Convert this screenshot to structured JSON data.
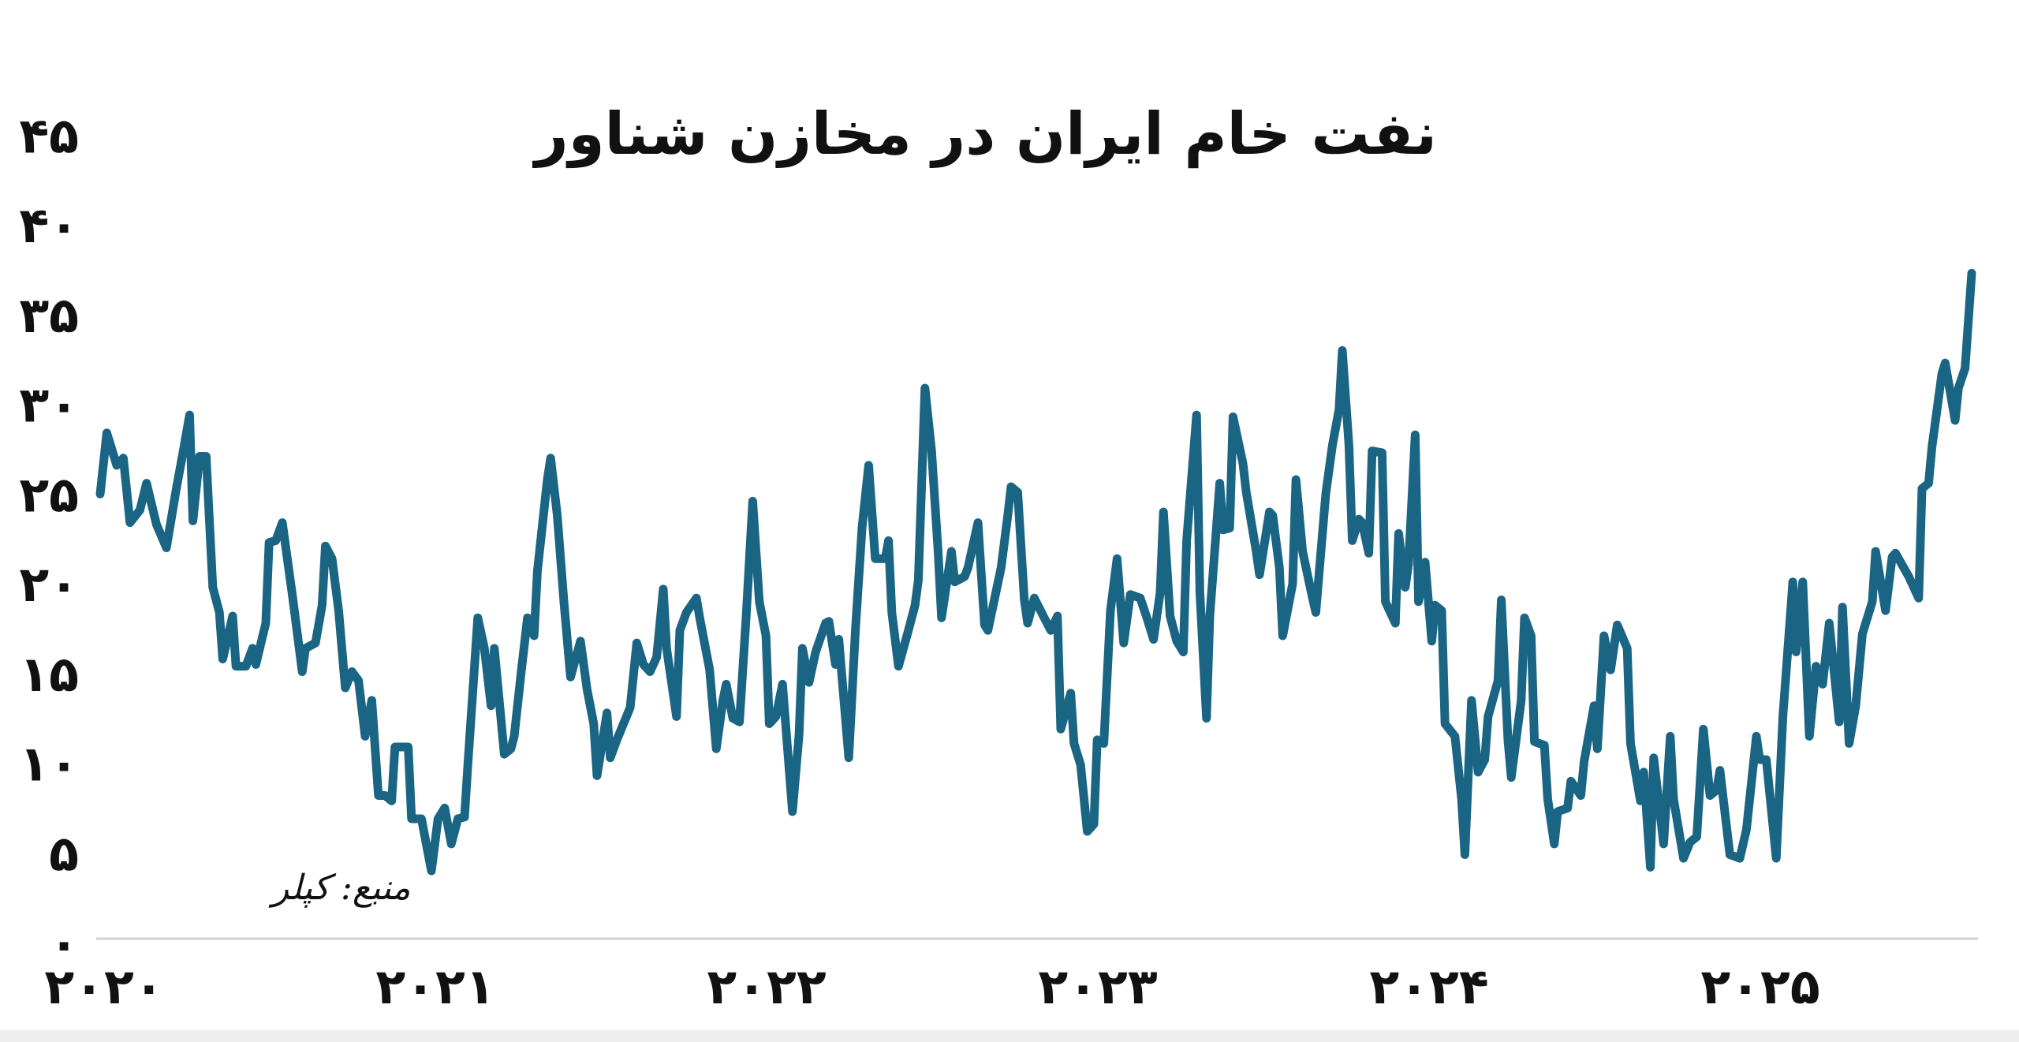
{
  "chart_data": {
    "type": "line",
    "title": "نفت خام ایران در مخازن شناور",
    "source": "منبع: کپلر",
    "xlabel": "",
    "ylabel": "",
    "ylim": [
      0,
      45
    ],
    "xlim": [
      2020,
      2025.65
    ],
    "grid": false,
    "line_color": "#1b6584",
    "y_ticks": [
      0,
      5,
      10,
      15,
      20,
      25,
      30,
      35,
      40,
      45
    ],
    "y_tick_labels": [
      "۰",
      "۵",
      "۱۰",
      "۱۵",
      "۲۰",
      "۲۵",
      "۳۰",
      "۳۵",
      "۴۰",
      "۴۵"
    ],
    "x_ticks": [
      2020,
      2021,
      2022,
      2023,
      2024,
      2025
    ],
    "x_tick_labels": [
      "۲۰۲۰",
      "۲۰۲۱",
      "۲۰۲۲",
      "۲۰۲۳",
      "۲۰۲۴",
      "۲۰۲۵"
    ],
    "series": [
      {
        "x": [
          2020.0,
          2020.02,
          2020.05,
          2020.07,
          2020.09,
          2020.12,
          2020.14,
          2020.17,
          2020.2,
          2020.23,
          2020.25,
          2020.27,
          2020.28,
          2020.3,
          2020.32,
          2020.34,
          2020.36,
          2020.37,
          2020.4,
          2020.41,
          2020.44,
          2020.46,
          2020.47,
          2020.5,
          2020.51,
          2020.53,
          2020.55,
          2020.58,
          2020.61,
          2020.62,
          2020.65,
          2020.67,
          2020.68,
          2020.7,
          2020.72,
          2020.74,
          2020.76,
          2020.78,
          2020.8,
          2020.82,
          2020.84,
          2020.86,
          2020.88,
          2020.89,
          2020.93,
          2020.94,
          2020.97,
          2021.0,
          2021.02,
          2021.04,
          2021.06,
          2021.08,
          2021.1,
          2021.11,
          2021.14,
          2021.16,
          2021.18,
          2021.19,
          2021.22,
          2021.24,
          2021.25,
          2021.27,
          2021.29,
          2021.31,
          2021.32,
          2021.35,
          2021.36,
          2021.38,
          2021.4,
          2021.42,
          2021.45,
          2021.47,
          2021.49,
          2021.5,
          2021.53,
          2021.54,
          2021.56,
          2021.6,
          2021.62,
          2021.64,
          2021.66,
          2021.68,
          2021.7,
          2021.71,
          2021.74,
          2021.75,
          2021.77,
          2021.8,
          2021.81,
          2021.84,
          2021.86,
          2021.88,
          2021.89,
          2021.91,
          2021.93,
          2021.95,
          2021.97,
          2021.99,
          2022.01,
          2022.02,
          2022.04,
          2022.06,
          2022.09,
          2022.11,
          2022.12,
          2022.14,
          2022.16,
          2022.19,
          2022.2,
          2022.22,
          2022.23,
          2022.26,
          2022.28,
          2022.3,
          2022.32,
          2022.34,
          2022.37,
          2022.38,
          2022.39,
          2022.41,
          2022.44,
          2022.46,
          2022.47,
          2022.49,
          2022.51,
          2022.53,
          2022.54,
          2022.57,
          2022.58,
          2022.61,
          2022.62,
          2022.65,
          2022.67,
          2022.68,
          2022.72,
          2022.74,
          2022.75,
          2022.77,
          2022.79,
          2022.8,
          2022.82,
          2022.85,
          2022.87,
          2022.89,
          2022.9,
          2022.93,
          2022.94,
          2022.96,
          2022.98,
          2023.0,
          2023.01,
          2023.03,
          2023.05,
          2023.07,
          2023.09,
          2023.11,
          2023.14,
          2023.16,
          2023.18,
          2023.2,
          2023.21,
          2023.23,
          2023.25,
          2023.27,
          2023.28,
          2023.31,
          2023.32,
          2023.34,
          2023.35,
          2023.38,
          2023.39,
          2023.41,
          2023.42,
          2023.45,
          2023.46,
          2023.49,
          2023.5,
          2023.53,
          2023.54,
          2023.56,
          2023.57,
          2023.6,
          2023.61,
          2023.63,
          2023.66,
          2023.67,
          2023.7,
          2023.72,
          2023.74,
          2023.75,
          2023.77,
          2023.78,
          2023.8,
          2023.81,
          2023.83,
          2023.84,
          2023.87,
          2023.88,
          2023.91,
          2023.92,
          2023.94,
          2023.95,
          2023.97,
          2023.98,
          2024.0,
          2024.02,
          2024.03,
          2024.05,
          2024.06,
          2024.09,
          2024.11,
          2024.12,
          2024.14,
          2024.16,
          2024.18,
          2024.19,
          2024.22,
          2024.23,
          2024.25,
          2024.26,
          2024.29,
          2024.3,
          2024.32,
          2024.33,
          2024.36,
          2024.37,
          2024.39,
          2024.4,
          2024.43,
          2024.44,
          2024.47,
          2024.48,
          2024.51,
          2024.52,
          2024.54,
          2024.56,
          2024.58,
          2024.61,
          2024.62,
          2024.65,
          2024.66,
          2024.68,
          2024.69,
          2024.72,
          2024.74,
          2024.75,
          2024.78,
          2024.8,
          2024.82,
          2024.84,
          2024.86,
          2024.88,
          2024.89,
          2024.92,
          2024.95,
          2024.97,
          2025.0,
          2025.01,
          2025.03,
          2025.06,
          2025.08,
          2025.11,
          2025.12,
          2025.14,
          2025.16,
          2025.18,
          2025.2,
          2025.22,
          2025.25,
          2025.26,
          2025.28,
          2025.3,
          2025.32,
          2025.35,
          2025.36,
          2025.39,
          2025.41,
          2025.42,
          2025.46,
          2025.49,
          2025.5,
          2025.52,
          2025.53,
          2025.56,
          2025.57,
          2025.6,
          2025.61,
          2025.63,
          2025.65
        ],
        "y": [
          25.0,
          28.4,
          26.6,
          27.0,
          23.4,
          24.1,
          25.6,
          23.3,
          22.0,
          25.3,
          27.3,
          29.4,
          23.5,
          27.1,
          27.1,
          19.8,
          18.4,
          15.8,
          18.2,
          15.4,
          15.4,
          16.4,
          15.5,
          17.8,
          22.3,
          22.4,
          23.4,
          19.4,
          15.1,
          16.4,
          16.7,
          18.8,
          22.1,
          21.4,
          18.5,
          14.2,
          15.1,
          14.6,
          11.5,
          13.5,
          8.2,
          8.2,
          7.9,
          10.9,
          10.9,
          6.9,
          6.9,
          4.0,
          6.9,
          7.5,
          5.5,
          6.9,
          7.0,
          9.9,
          18.1,
          16.4,
          13.2,
          16.4,
          10.5,
          10.8,
          11.5,
          14.9,
          18.1,
          17.1,
          20.7,
          25.8,
          27.0,
          23.8,
          19.0,
          14.8,
          16.8,
          14.1,
          12.2,
          9.3,
          12.8,
          10.3,
          11.3,
          13.1,
          16.7,
          15.5,
          15.1,
          15.9,
          19.7,
          16.4,
          12.6,
          17.4,
          18.4,
          19.2,
          18.1,
          15.2,
          10.8,
          13.5,
          14.4,
          12.5,
          12.3,
          18.1,
          24.6,
          19.0,
          17.1,
          12.2,
          12.6,
          14.4,
          7.3,
          11.6,
          16.4,
          14.5,
          16.2,
          17.8,
          17.9,
          15.5,
          16.9,
          10.3,
          17.4,
          23.1,
          26.6,
          21.4,
          21.4,
          22.4,
          18.4,
          15.4,
          17.4,
          18.8,
          20.2,
          30.9,
          27.4,
          21.7,
          18.1,
          21.8,
          20.1,
          20.4,
          20.9,
          23.4,
          17.7,
          17.4,
          20.9,
          23.8,
          25.4,
          25.1,
          19.1,
          17.8,
          19.2,
          18.1,
          17.4,
          18.2,
          11.9,
          13.9,
          11.1,
          9.9,
          6.2,
          6.6,
          11.3,
          11.1,
          18.5,
          21.4,
          16.7,
          19.4,
          19.2,
          18.1,
          16.9,
          19.5,
          24.0,
          18.2,
          16.8,
          16.2,
          22.4,
          29.4,
          19.5,
          12.5,
          18.2,
          25.6,
          23.0,
          23.1,
          29.3,
          26.7,
          25.1,
          21.8,
          20.5,
          24.0,
          23.8,
          20.9,
          17.1,
          20.0,
          25.8,
          21.8,
          19.2,
          18.4,
          25.0,
          27.7,
          29.7,
          33.0,
          27.7,
          22.4,
          23.6,
          23.4,
          21.7,
          27.4,
          27.3,
          19.0,
          17.8,
          22.8,
          19.8,
          21.1,
          28.3,
          19.0,
          21.2,
          16.8,
          18.8,
          18.5,
          12.2,
          11.5,
          8.0,
          4.9,
          13.5,
          9.5,
          10.2,
          12.6,
          14.6,
          19.1,
          11.3,
          9.2,
          13.5,
          18.1,
          17.1,
          11.2,
          11.0,
          8.0,
          5.5,
          7.3,
          7.5,
          9.0,
          8.2,
          10.1,
          13.2,
          10.8,
          17.1,
          15.2,
          17.7,
          16.4,
          11.1,
          7.9,
          9.5,
          4.2,
          10.3,
          5.5,
          11.5,
          8.0,
          4.7,
          5.6,
          5.9,
          11.9,
          8.2,
          8.5,
          9.6,
          4.9,
          4.7,
          6.3,
          11.5,
          10.2,
          10.2,
          4.7,
          12.6,
          20.1,
          16.2,
          20.1,
          11.5,
          15.4,
          14.4,
          17.8,
          12.3,
          18.7,
          11.1,
          13.2,
          17.2,
          19.0,
          21.8,
          18.5,
          21.5,
          21.7,
          20.4,
          19.2,
          25.3,
          25.6,
          27.6,
          31.7,
          32.3,
          29.1,
          30.9,
          32.0,
          37.3
        ]
      }
    ]
  }
}
